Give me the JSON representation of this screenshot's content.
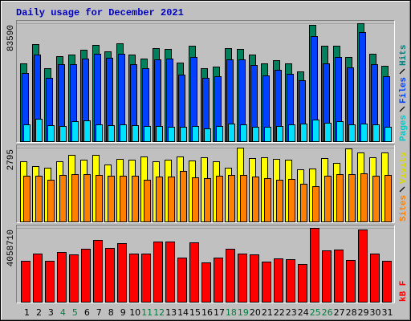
{
  "title": "Daily usage for December 2021",
  "chart_data": [
    {
      "type": "bar",
      "series": [
        {
          "name": "Hits",
          "color": "#00805c",
          "label_color": "#008080",
          "values": [
            55160,
            68800,
            51750,
            60280,
            61410,
            64830,
            68240,
            63690,
            69370,
            61410,
            58570,
            65960,
            65390,
            55730,
            67670,
            51750,
            52880,
            65960,
            65390,
            61410,
            55160,
            57430,
            55160,
            49470,
            82450,
            67670,
            67670,
            59710,
            83590,
            61980,
            53450
          ]
        },
        {
          "name": "Files",
          "color": "#0040ff",
          "label_color": "#0040ff",
          "values": [
            48330,
            61410,
            44920,
            54590,
            54590,
            58570,
            61980,
            59140,
            61980,
            54590,
            51750,
            58000,
            58570,
            47200,
            59710,
            44920,
            46060,
            58000,
            58000,
            54020,
            46630,
            50610,
            47770,
            43220,
            74490,
            55160,
            59710,
            52310,
            77330,
            54590,
            46060
          ]
        },
        {
          "name": "Pages",
          "color": "#00e0ff",
          "label_color": "#00c8c8",
          "values": [
            11940,
            15920,
            11370,
            10800,
            14220,
            14780,
            11940,
            11370,
            11940,
            11370,
            10800,
            10800,
            10230,
            10230,
            10800,
            9100,
            10800,
            12510,
            11940,
            10230,
            10230,
            10800,
            11940,
            12510,
            15350,
            13080,
            14220,
            11940,
            12510,
            11940,
            10230
          ]
        }
      ],
      "ylim": [
        0,
        83590
      ],
      "yticks": [
        83590
      ]
    },
    {
      "type": "bar",
      "series": [
        {
          "name": "Visits",
          "color": "#ffff00",
          "label_color": "#d8d800",
          "values": [
            2279,
            2096,
            2035,
            2279,
            2522,
            2339,
            2522,
            2157,
            2370,
            2339,
            2461,
            2279,
            2339,
            2461,
            2309,
            2430,
            2279,
            2035,
            2795,
            2400,
            2430,
            2370,
            2339,
            1975,
            2005,
            2400,
            2218,
            2765,
            2613,
            2430,
            2613
          ]
        },
        {
          "name": "Sites",
          "color": "#ff8000",
          "label_color": "#ff8000",
          "values": [
            1732,
            1732,
            1580,
            1762,
            1792,
            1792,
            1762,
            1732,
            1732,
            1732,
            1580,
            1701,
            1701,
            1914,
            1671,
            1641,
            1732,
            1762,
            1762,
            1701,
            1641,
            1580,
            1610,
            1428,
            1337,
            1732,
            1792,
            1792,
            1823,
            1732,
            1762
          ]
        }
      ],
      "ylim": [
        0,
        2795
      ],
      "yticks": [
        2795
      ]
    },
    {
      "type": "bar",
      "categories": [
        "1",
        "2",
        "3",
        "4",
        "5",
        "6",
        "7",
        "8",
        "9",
        "10",
        "11",
        "12",
        "13",
        "14",
        "15",
        "16",
        "17",
        "18",
        "19",
        "20",
        "21",
        "22",
        "23",
        "24",
        "25",
        "26",
        "27",
        "28",
        "29",
        "30",
        "31"
      ],
      "category_colors": [
        "#000000",
        "#000000",
        "#000000",
        "#008040",
        "#008040",
        "#000000",
        "#000000",
        "#000000",
        "#000000",
        "#000000",
        "#008040",
        "#008040",
        "#000000",
        "#000000",
        "#000000",
        "#000000",
        "#000000",
        "#008040",
        "#008040",
        "#000000",
        "#000000",
        "#000000",
        "#000000",
        "#000000",
        "#008040",
        "#008040",
        "#000000",
        "#000000",
        "#000000",
        "#000000",
        "#000000"
      ],
      "series": [
        {
          "name": "kB F",
          "color": "#ff0000",
          "label_color": "#ff0000",
          "values": [
            2249900,
            2646960,
            2249900,
            2735190,
            2602840,
            2911660,
            3396930,
            2955770,
            3220470,
            2646960,
            2646960,
            3308700,
            3308700,
            2426380,
            3264580,
            2161680,
            2426380,
            2911660,
            2646960,
            2602840,
            2205800,
            2382260,
            2338150,
            2073450,
            4058710,
            2823420,
            2867540,
            2294030,
            3970440,
            2646960,
            2249900
          ]
        }
      ],
      "ylim": [
        0,
        4058710
      ],
      "yticks": [
        4058710
      ]
    }
  ]
}
